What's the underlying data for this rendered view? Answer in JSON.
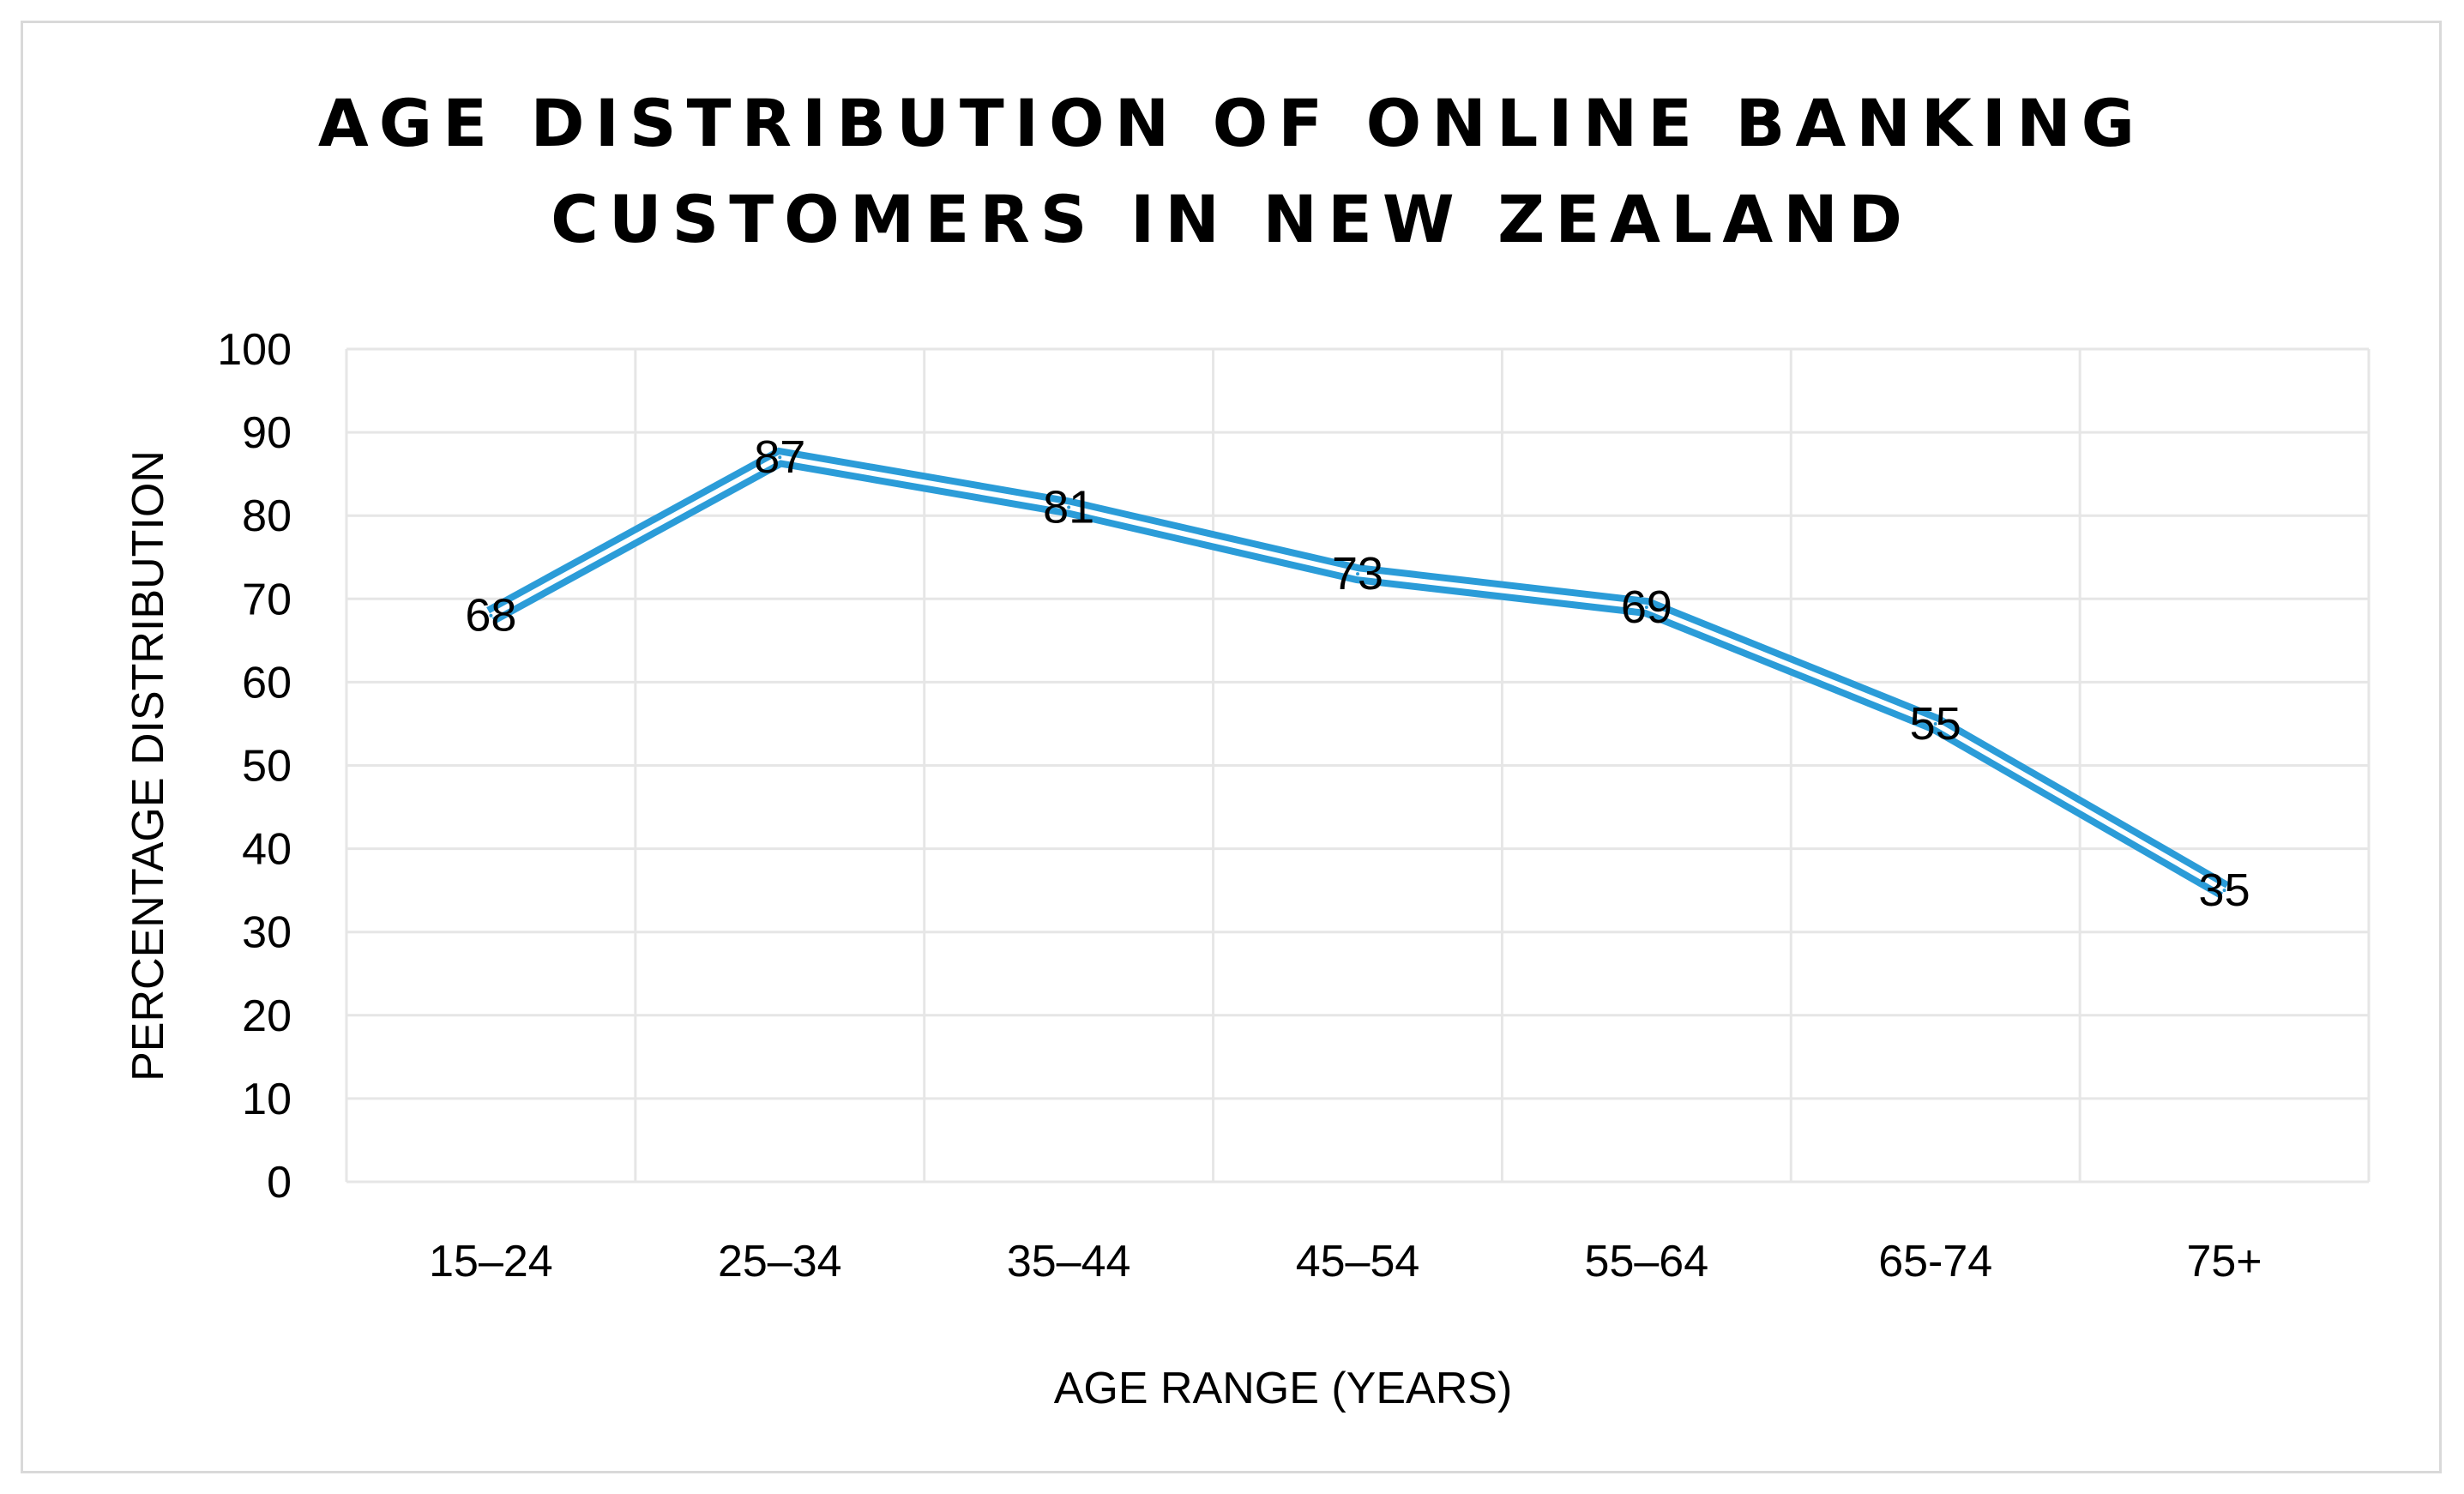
{
  "chart_data": {
    "type": "line",
    "title": [
      "AGE DISTRIBUTION OF ONLINE BANKING",
      "CUSTOMERS IN NEW ZEALAND"
    ],
    "xlabel": "AGE RANGE (YEARS)",
    "ylabel": "PERCENTAGE DISTRIBUTION",
    "categories": [
      "15–24",
      "25–34",
      "35–44",
      "45–54",
      "55–64",
      "65-74",
      "75+"
    ],
    "series": [
      {
        "values": [
          68,
          87,
          81,
          73,
          69,
          55,
          35
        ],
        "color": "#2b9cd8"
      }
    ],
    "ylim": [
      0,
      100
    ],
    "yticks": [
      0,
      10,
      20,
      30,
      40,
      50,
      60,
      70,
      80,
      90,
      100
    ],
    "grid": true,
    "data_labels": true,
    "line_style": "double"
  }
}
